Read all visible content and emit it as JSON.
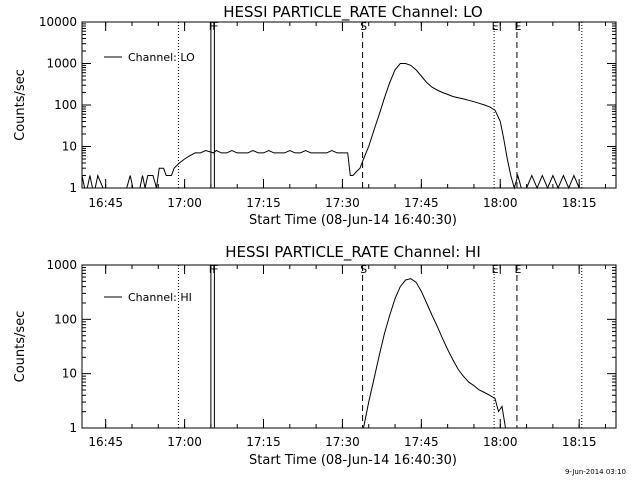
{
  "chart_data": [
    {
      "type": "line",
      "title": "HESSI PARTICLE_RATE Channel: LO",
      "xlabel": "Start Time (08-Jun-14 16:40:30)",
      "ylabel": "Counts/sec",
      "y_scale": "log",
      "ylim": [
        1,
        10000
      ],
      "y_ticks": [
        1,
        10,
        100,
        1000,
        10000
      ],
      "y_tick_labels": [
        "1",
        "10",
        "100",
        "1000",
        "10000"
      ],
      "xlim": [
        "16:40:30",
        "18:22:00"
      ],
      "x_ticks": [
        "16:45",
        "17:00",
        "17:15",
        "17:30",
        "17:45",
        "18:00",
        "18:15"
      ],
      "x_tick_labels": [
        "16:45",
        "17:00",
        "17:15",
        "17:30",
        "17:45",
        "18:00",
        "18:15"
      ],
      "legend": {
        "placement": "top-left",
        "entries": [
          "Channel: LO"
        ]
      },
      "markers": [
        {
          "label": "F",
          "x": "17:05:00",
          "style": "solid"
        },
        {
          "label": "F",
          "x": "17:05:40",
          "style": "solid"
        },
        {
          "label": "S",
          "x": "17:33:50",
          "style": "dashed"
        },
        {
          "label": "E",
          "x": "17:58:50",
          "style": "dotted"
        },
        {
          "label": "E",
          "x": "18:03:10",
          "style": "dashed"
        },
        {
          "label": "",
          "x": "16:58:50",
          "style": "dotted"
        },
        {
          "label": "",
          "x": "18:15:30",
          "style": "dotted"
        }
      ],
      "series": [
        {
          "color": "#000000",
          "x": [
            "16:40:30",
            "16:41:00",
            "16:41:30",
            "16:42:00",
            "16:42:30",
            "16:43:00",
            "16:43:30",
            "16:44:30",
            "16:47:00",
            "16:49:00",
            "16:49:40",
            "16:50:10",
            "16:51:30",
            "16:52:00",
            "16:52:30",
            "16:53:00",
            "16:54:00",
            "16:54:40",
            "16:55:10",
            "16:56:00",
            "16:56:30",
            "16:57:30",
            "16:58:00",
            "16:59:00",
            "17:00:00",
            "17:01:00",
            "17:02:00",
            "17:03:00",
            "17:04:00",
            "17:05:30",
            "17:06:00",
            "17:07:00",
            "17:08:00",
            "17:09:00",
            "17:10:00",
            "17:11:00",
            "17:12:00",
            "17:13:00",
            "17:14:00",
            "17:15:00",
            "17:16:00",
            "17:17:00",
            "17:18:00",
            "17:19:00",
            "17:20:00",
            "17:21:00",
            "17:22:00",
            "17:23:00",
            "17:24:00",
            "17:25:00",
            "17:26:00",
            "17:27:00",
            "17:28:00",
            "17:29:00",
            "17:30:00",
            "17:31:00",
            "17:31:30",
            "17:32:00",
            "17:32:40",
            "17:33:20",
            "17:34:00",
            "17:35:00",
            "17:36:00",
            "17:37:00",
            "17:38:00",
            "17:39:00",
            "17:40:00",
            "17:41:00",
            "17:42:00",
            "17:43:00",
            "17:44:00",
            "17:45:00",
            "17:46:00",
            "17:47:00",
            "17:48:00",
            "17:49:00",
            "17:50:00",
            "17:51:00",
            "17:52:00",
            "17:53:00",
            "17:54:00",
            "17:55:00",
            "17:56:00",
            "17:57:00",
            "17:58:00",
            "17:59:00",
            "18:00:00",
            "18:00:40",
            "18:01:20",
            "18:02:00",
            "18:02:40",
            "18:03:20",
            "18:04:00",
            "18:05:00",
            "18:06:00",
            "18:07:00",
            "18:08:00",
            "18:09:00",
            "18:10:00",
            "18:11:00",
            "18:12:00",
            "18:13:00",
            "18:14:00",
            "18:15:00"
          ],
          "values": [
            2,
            1,
            1,
            2,
            1,
            1,
            2,
            1,
            1,
            1,
            2,
            1,
            1,
            2,
            1,
            2,
            2,
            1,
            3,
            3,
            2,
            2,
            3,
            4,
            5,
            6,
            7,
            7,
            8,
            7,
            8,
            7,
            7,
            8,
            7,
            7,
            7,
            8,
            7,
            7,
            8,
            7,
            7,
            7,
            8,
            7,
            7,
            8,
            7,
            7,
            7,
            7,
            8,
            7,
            7,
            7,
            2,
            2,
            2.5,
            3,
            5,
            10,
            25,
            60,
            150,
            350,
            700,
            1000,
            1000,
            900,
            700,
            500,
            350,
            270,
            230,
            200,
            180,
            160,
            150,
            140,
            130,
            120,
            110,
            100,
            90,
            75,
            40,
            15,
            5,
            2,
            1,
            2,
            1,
            1,
            2,
            1,
            2,
            1,
            2,
            1,
            2,
            1,
            2,
            1
          ]
        }
      ]
    },
    {
      "type": "line",
      "title": "HESSI PARTICLE_RATE Channel: HI",
      "xlabel": "Start Time (08-Jun-14 16:40:30)",
      "ylabel": "Counts/sec",
      "y_scale": "log",
      "ylim": [
        1,
        1000
      ],
      "y_ticks": [
        1,
        10,
        100,
        1000
      ],
      "y_tick_labels": [
        "1",
        "10",
        "100",
        "1000"
      ],
      "xlim": [
        "16:40:30",
        "18:22:00"
      ],
      "x_ticks": [
        "16:45",
        "17:00",
        "17:15",
        "17:30",
        "17:45",
        "18:00",
        "18:15"
      ],
      "x_tick_labels": [
        "16:45",
        "17:00",
        "17:15",
        "17:30",
        "17:45",
        "18:00",
        "18:15"
      ],
      "legend": {
        "placement": "top-left",
        "entries": [
          "Channel: HI"
        ]
      },
      "markers": [
        {
          "label": "F",
          "x": "17:05:00",
          "style": "solid"
        },
        {
          "label": "F",
          "x": "17:05:40",
          "style": "solid"
        },
        {
          "label": "S",
          "x": "17:33:50",
          "style": "dashed"
        },
        {
          "label": "E",
          "x": "17:58:50",
          "style": "dotted"
        },
        {
          "label": "E",
          "x": "18:03:10",
          "style": "dashed"
        },
        {
          "label": "",
          "x": "16:58:50",
          "style": "dotted"
        },
        {
          "label": "",
          "x": "18:15:30",
          "style": "dotted"
        }
      ],
      "series": [
        {
          "color": "#000000",
          "x": [
            "17:34:00",
            "17:35:00",
            "17:36:00",
            "17:37:00",
            "17:38:00",
            "17:39:00",
            "17:40:00",
            "17:41:00",
            "17:42:00",
            "17:43:00",
            "17:44:00",
            "17:45:00",
            "17:46:00",
            "17:47:00",
            "17:48:00",
            "17:49:00",
            "17:50:00",
            "17:51:00",
            "17:52:00",
            "17:53:00",
            "17:54:00",
            "17:55:00",
            "17:56:00",
            "17:57:00",
            "17:58:00",
            "17:59:00",
            "17:59:40",
            "18:00:20",
            "18:01:00"
          ],
          "values": [
            1,
            3,
            8,
            22,
            55,
            120,
            240,
            400,
            530,
            560,
            480,
            330,
            200,
            120,
            75,
            45,
            28,
            18,
            12,
            9,
            7,
            6,
            5,
            4.5,
            4,
            3.5,
            2,
            2.5,
            1
          ]
        }
      ]
    }
  ],
  "timestamp": "9-Jun-2014 03:10"
}
